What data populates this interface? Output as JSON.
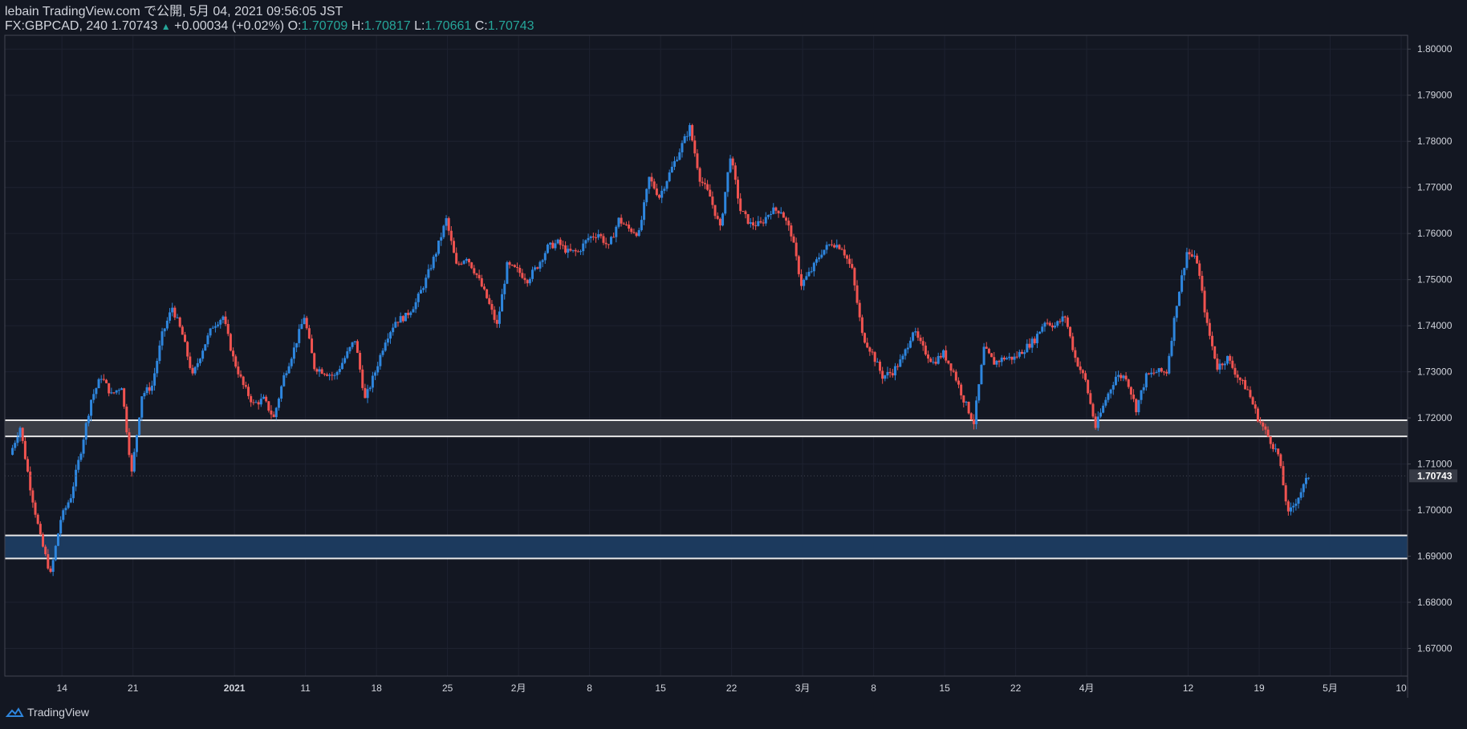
{
  "header": {
    "line1": "lebain TradingView.com で公開, 5月 04, 2021 09:56:05 JST",
    "symbol": "FX:GBPCAD, 240",
    "last": "1.70743",
    "change": "+0.00034 (+0.02%)",
    "o_label": "O:",
    "o_value": "1.70709",
    "h_label": "H:",
    "h_value": "1.70817",
    "l_label": "L:",
    "l_value": "1.70661",
    "c_label": "C:",
    "c_value": "1.70743"
  },
  "footer": {
    "brand": "TradingView"
  },
  "colors": {
    "background": "#131722",
    "up": "#2e86de",
    "down": "#f05350",
    "grid": "#1e2230",
    "resistance_zone": "#3a3d45",
    "support_zone": "#1c3a5e",
    "zone_border": "#e8e8e8"
  },
  "chart_data": {
    "type": "candlestick",
    "symbol": "FX:GBPCAD",
    "interval": "240",
    "y_ticks": [
      "1.80000",
      "1.79000",
      "1.78000",
      "1.77000",
      "1.76000",
      "1.75000",
      "1.74000",
      "1.73000",
      "1.72000",
      "1.71000",
      "1.70000",
      "1.69000",
      "1.68000",
      "1.67000"
    ],
    "y_tick_values": [
      1.8,
      1.79,
      1.78,
      1.77,
      1.76,
      1.75,
      1.74,
      1.73,
      1.72,
      1.71,
      1.7,
      1.69,
      1.68,
      1.67
    ],
    "ylim": [
      1.664,
      1.803
    ],
    "x_ticks": [
      "14",
      "21",
      "2021",
      "11",
      "18",
      "25",
      "2月",
      "8",
      "15",
      "22",
      "3月",
      "8",
      "15",
      "22",
      "4月",
      "12",
      "19",
      "5月",
      "10"
    ],
    "x_tick_index": [
      5,
      12,
      22,
      29,
      36,
      43,
      50,
      57,
      64,
      71,
      78,
      85,
      92,
      99,
      106,
      116,
      123,
      130,
      137
    ],
    "x_index_range": [
      0,
      137
    ],
    "current_price": "1.70743",
    "current_price_value": 1.70743,
    "zones": [
      {
        "name": "resistance-zone",
        "top": 1.7195,
        "bottom": 1.716
      },
      {
        "name": "support-zone",
        "top": 1.6945,
        "bottom": 1.6895
      }
    ],
    "price_path": [
      {
        "i": 0,
        "v": 1.712
      },
      {
        "i": 1,
        "v": 1.718
      },
      {
        "i": 2,
        "v": 1.705
      },
      {
        "i": 3,
        "v": 1.694
      },
      {
        "i": 4,
        "v": 1.686
      },
      {
        "i": 5,
        "v": 1.698
      },
      {
        "i": 6,
        "v": 1.703
      },
      {
        "i": 7,
        "v": 1.713
      },
      {
        "i": 8,
        "v": 1.724
      },
      {
        "i": 9,
        "v": 1.729
      },
      {
        "i": 10,
        "v": 1.725
      },
      {
        "i": 11,
        "v": 1.727
      },
      {
        "i": 12,
        "v": 1.708
      },
      {
        "i": 13,
        "v": 1.725
      },
      {
        "i": 14,
        "v": 1.727
      },
      {
        "i": 15,
        "v": 1.738
      },
      {
        "i": 16,
        "v": 1.744
      },
      {
        "i": 17,
        "v": 1.738
      },
      {
        "i": 18,
        "v": 1.729
      },
      {
        "i": 19,
        "v": 1.735
      },
      {
        "i": 20,
        "v": 1.74
      },
      {
        "i": 21,
        "v": 1.742
      },
      {
        "i": 22,
        "v": 1.733
      },
      {
        "i": 23,
        "v": 1.727
      },
      {
        "i": 24,
        "v": 1.723
      },
      {
        "i": 25,
        "v": 1.724
      },
      {
        "i": 26,
        "v": 1.72
      },
      {
        "i": 27,
        "v": 1.729
      },
      {
        "i": 28,
        "v": 1.735
      },
      {
        "i": 29,
        "v": 1.742
      },
      {
        "i": 30,
        "v": 1.731
      },
      {
        "i": 31,
        "v": 1.73
      },
      {
        "i": 32,
        "v": 1.729
      },
      {
        "i": 33,
        "v": 1.733
      },
      {
        "i": 34,
        "v": 1.737
      },
      {
        "i": 35,
        "v": 1.724
      },
      {
        "i": 36,
        "v": 1.73
      },
      {
        "i": 37,
        "v": 1.737
      },
      {
        "i": 38,
        "v": 1.741
      },
      {
        "i": 39,
        "v": 1.742
      },
      {
        "i": 40,
        "v": 1.745
      },
      {
        "i": 41,
        "v": 1.75
      },
      {
        "i": 42,
        "v": 1.756
      },
      {
        "i": 43,
        "v": 1.763
      },
      {
        "i": 44,
        "v": 1.753
      },
      {
        "i": 45,
        "v": 1.755
      },
      {
        "i": 46,
        "v": 1.751
      },
      {
        "i": 47,
        "v": 1.746
      },
      {
        "i": 48,
        "v": 1.74
      },
      {
        "i": 49,
        "v": 1.753
      },
      {
        "i": 50,
        "v": 1.752
      },
      {
        "i": 51,
        "v": 1.75
      },
      {
        "i": 52,
        "v": 1.753
      },
      {
        "i": 53,
        "v": 1.757
      },
      {
        "i": 54,
        "v": 1.758
      },
      {
        "i": 55,
        "v": 1.756
      },
      {
        "i": 56,
        "v": 1.756
      },
      {
        "i": 57,
        "v": 1.759
      },
      {
        "i": 58,
        "v": 1.76
      },
      {
        "i": 59,
        "v": 1.757
      },
      {
        "i": 60,
        "v": 1.763
      },
      {
        "i": 61,
        "v": 1.761
      },
      {
        "i": 62,
        "v": 1.76
      },
      {
        "i": 63,
        "v": 1.772
      },
      {
        "i": 64,
        "v": 1.768
      },
      {
        "i": 65,
        "v": 1.773
      },
      {
        "i": 66,
        "v": 1.778
      },
      {
        "i": 67,
        "v": 1.783
      },
      {
        "i": 68,
        "v": 1.772
      },
      {
        "i": 69,
        "v": 1.768
      },
      {
        "i": 70,
        "v": 1.761
      },
      {
        "i": 71,
        "v": 1.777
      },
      {
        "i": 72,
        "v": 1.765
      },
      {
        "i": 73,
        "v": 1.762
      },
      {
        "i": 74,
        "v": 1.762
      },
      {
        "i": 75,
        "v": 1.765
      },
      {
        "i": 76,
        "v": 1.765
      },
      {
        "i": 77,
        "v": 1.76
      },
      {
        "i": 78,
        "v": 1.749
      },
      {
        "i": 79,
        "v": 1.752
      },
      {
        "i": 80,
        "v": 1.756
      },
      {
        "i": 81,
        "v": 1.758
      },
      {
        "i": 82,
        "v": 1.757
      },
      {
        "i": 83,
        "v": 1.752
      },
      {
        "i": 84,
        "v": 1.738
      },
      {
        "i": 85,
        "v": 1.734
      },
      {
        "i": 86,
        "v": 1.729
      },
      {
        "i": 87,
        "v": 1.73
      },
      {
        "i": 88,
        "v": 1.733
      },
      {
        "i": 89,
        "v": 1.739
      },
      {
        "i": 90,
        "v": 1.735
      },
      {
        "i": 91,
        "v": 1.732
      },
      {
        "i": 92,
        "v": 1.734
      },
      {
        "i": 93,
        "v": 1.73
      },
      {
        "i": 94,
        "v": 1.724
      },
      {
        "i": 95,
        "v": 1.719
      },
      {
        "i": 96,
        "v": 1.735
      },
      {
        "i": 97,
        "v": 1.732
      },
      {
        "i": 98,
        "v": 1.733
      },
      {
        "i": 99,
        "v": 1.733
      },
      {
        "i": 100,
        "v": 1.735
      },
      {
        "i": 101,
        "v": 1.737
      },
      {
        "i": 102,
        "v": 1.741
      },
      {
        "i": 103,
        "v": 1.74
      },
      {
        "i": 104,
        "v": 1.742
      },
      {
        "i": 105,
        "v": 1.733
      },
      {
        "i": 106,
        "v": 1.728
      },
      {
        "i": 107,
        "v": 1.718
      },
      {
        "i": 108,
        "v": 1.724
      },
      {
        "i": 109,
        "v": 1.729
      },
      {
        "i": 110,
        "v": 1.729
      },
      {
        "i": 111,
        "v": 1.722
      },
      {
        "i": 112,
        "v": 1.729
      },
      {
        "i": 113,
        "v": 1.73
      },
      {
        "i": 114,
        "v": 1.73
      },
      {
        "i": 115,
        "v": 1.745
      },
      {
        "i": 116,
        "v": 1.756
      },
      {
        "i": 117,
        "v": 1.754
      },
      {
        "i": 118,
        "v": 1.74
      },
      {
        "i": 119,
        "v": 1.731
      },
      {
        "i": 120,
        "v": 1.733
      },
      {
        "i": 121,
        "v": 1.729
      },
      {
        "i": 122,
        "v": 1.726
      },
      {
        "i": 123,
        "v": 1.72
      },
      {
        "i": 124,
        "v": 1.716
      },
      {
        "i": 125,
        "v": 1.712
      },
      {
        "i": 126,
        "v": 1.699
      },
      {
        "i": 127,
        "v": 1.703
      },
      {
        "i": 128,
        "v": 1.7074
      }
    ]
  }
}
